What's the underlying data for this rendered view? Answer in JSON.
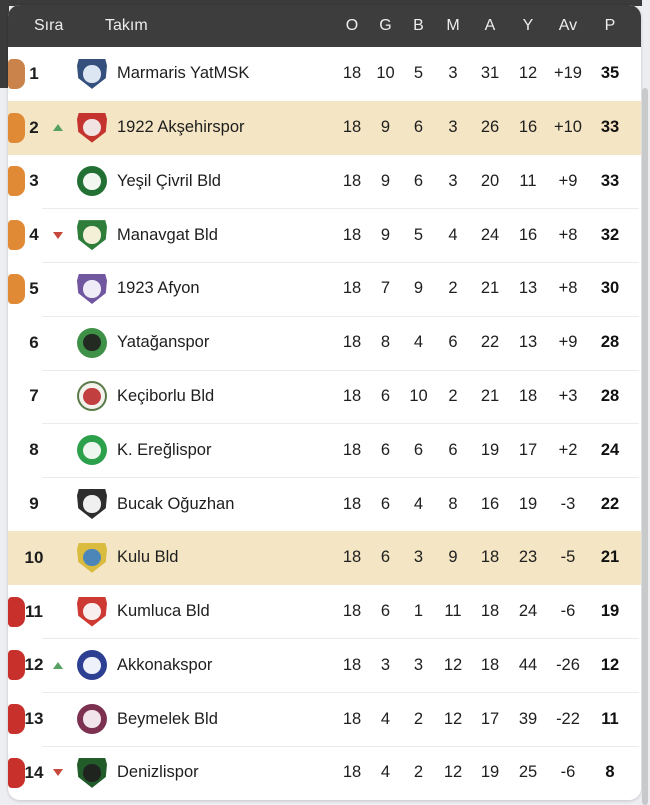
{
  "table": {
    "header": {
      "rank_label": "Sıra",
      "team_label": "Takım",
      "stat_labels": [
        "O",
        "G",
        "B",
        "M",
        "A",
        "Y",
        "Av",
        "P"
      ]
    },
    "colors": {
      "header_bg": "#3d3d3d",
      "highlight_row_bg": "#f4e6c4",
      "promotion_indicator": "#c9834b",
      "playoff_indicator": "#e08a35",
      "relegation_indicator": "#c8312b",
      "trend_up": "#55a263",
      "trend_down": "#c7473c"
    },
    "rows": [
      {
        "rank": "1",
        "trend": null,
        "indicator": "#c9834b",
        "team": "Marmaris YatMSK",
        "highlight": false,
        "logo": {
          "name": "marmaris-yatmsk-logo",
          "shape": "shield",
          "primary": "#35507c",
          "secondary": "#dce6f2"
        },
        "stats": [
          "18",
          "10",
          "5",
          "3",
          "31",
          "12",
          "+19",
          "35"
        ]
      },
      {
        "rank": "2",
        "trend": "up",
        "indicator": "#e08a35",
        "team": "1922 Akşehirspor",
        "highlight": true,
        "logo": {
          "name": "aksehirspor-logo",
          "shape": "shield",
          "primary": "#c5332e",
          "secondary": "#f1e3e2"
        },
        "stats": [
          "18",
          "9",
          "6",
          "3",
          "26",
          "16",
          "+10",
          "33"
        ]
      },
      {
        "rank": "3",
        "trend": null,
        "indicator": "#e08a35",
        "team": "Yeşil Çivril Bld",
        "highlight": false,
        "logo": {
          "name": "yesil-civril-logo",
          "shape": "circle",
          "primary": "#237034",
          "secondary": "#f2f7f2"
        },
        "stats": [
          "18",
          "9",
          "6",
          "3",
          "20",
          "11",
          "+9",
          "33"
        ]
      },
      {
        "rank": "4",
        "trend": "down",
        "indicator": "#e08a35",
        "team": "Manavgat Bld",
        "highlight": false,
        "logo": {
          "name": "manavgat-logo",
          "shape": "shield",
          "primary": "#2f7d3a",
          "secondary": "#f4f0d8"
        },
        "stats": [
          "18",
          "9",
          "5",
          "4",
          "24",
          "16",
          "+8",
          "32"
        ]
      },
      {
        "rank": "5",
        "trend": null,
        "indicator": "#e08a35",
        "team": "1923 Afyon",
        "highlight": false,
        "logo": {
          "name": "afyon-logo",
          "shape": "shield",
          "primary": "#7156a0",
          "secondary": "#f0ecf7"
        },
        "stats": [
          "18",
          "7",
          "9",
          "2",
          "21",
          "13",
          "+8",
          "30"
        ]
      },
      {
        "rank": "6",
        "trend": null,
        "indicator": null,
        "team": "Yatağanspor",
        "highlight": false,
        "logo": {
          "name": "yataganspor-logo",
          "shape": "circle",
          "primary": "#3f9147",
          "secondary": "#222a22"
        },
        "stats": [
          "18",
          "8",
          "4",
          "6",
          "22",
          "13",
          "+9",
          "28"
        ]
      },
      {
        "rank": "7",
        "trend": null,
        "indicator": null,
        "team": "Keçiborlu Bld",
        "highlight": false,
        "logo": {
          "name": "keciborlu-logo",
          "shape": "circle",
          "primary": "#f3f2ec",
          "secondary": "#c13f3f",
          "ring": "#5a7a4a"
        },
        "stats": [
          "18",
          "6",
          "10",
          "2",
          "21",
          "18",
          "+3",
          "28"
        ]
      },
      {
        "rank": "8",
        "trend": null,
        "indicator": null,
        "team": "K. Ereğlispor",
        "highlight": false,
        "logo": {
          "name": "ereglispor-logo",
          "shape": "circle",
          "primary": "#2da04b",
          "secondary": "#eef7ef"
        },
        "stats": [
          "18",
          "6",
          "6",
          "6",
          "19",
          "17",
          "+2",
          "24"
        ]
      },
      {
        "rank": "9",
        "trend": null,
        "indicator": null,
        "team": "Bucak Oğuzhan",
        "highlight": false,
        "logo": {
          "name": "bucak-oguzhan-logo",
          "shape": "shield",
          "primary": "#2e2e2e",
          "secondary": "#f0f0f0"
        },
        "stats": [
          "18",
          "6",
          "4",
          "8",
          "16",
          "19",
          "-3",
          "22"
        ]
      },
      {
        "rank": "10",
        "trend": null,
        "indicator": null,
        "team": "Kulu Bld",
        "highlight": true,
        "logo": {
          "name": "kulu-logo",
          "shape": "shield",
          "primary": "#d9bc3f",
          "secondary": "#4c86b8"
        },
        "stats": [
          "18",
          "6",
          "3",
          "9",
          "18",
          "23",
          "-5",
          "21"
        ]
      },
      {
        "rank": "11",
        "trend": null,
        "indicator": "#c8312b",
        "team": "Kumluca Bld",
        "highlight": false,
        "logo": {
          "name": "kumluca-logo",
          "shape": "shield",
          "primary": "#cd3a33",
          "secondary": "#f8efee"
        },
        "stats": [
          "18",
          "6",
          "1",
          "11",
          "18",
          "24",
          "-6",
          "19"
        ]
      },
      {
        "rank": "12",
        "trend": "up",
        "indicator": "#c8312b",
        "team": "Akkonakspor",
        "highlight": false,
        "logo": {
          "name": "akkonakspor-logo",
          "shape": "circle",
          "primary": "#2d3f92",
          "secondary": "#eef1f9"
        },
        "stats": [
          "18",
          "3",
          "3",
          "12",
          "18",
          "44",
          "-26",
          "12"
        ]
      },
      {
        "rank": "13",
        "trend": null,
        "indicator": "#c8312b",
        "team": "Beymelek Bld",
        "highlight": false,
        "logo": {
          "name": "beymelek-logo",
          "shape": "circle",
          "primary": "#7c3150",
          "secondary": "#f1e4ea"
        },
        "stats": [
          "18",
          "4",
          "2",
          "12",
          "17",
          "39",
          "-22",
          "11"
        ]
      },
      {
        "rank": "14",
        "trend": "down",
        "indicator": "#c8312b",
        "team": "Denizlispor",
        "highlight": false,
        "logo": {
          "name": "denizlispor-logo",
          "shape": "shield",
          "primary": "#215c2a",
          "secondary": "#20241f"
        },
        "stats": [
          "18",
          "4",
          "2",
          "12",
          "19",
          "25",
          "-6",
          "8"
        ]
      }
    ]
  }
}
